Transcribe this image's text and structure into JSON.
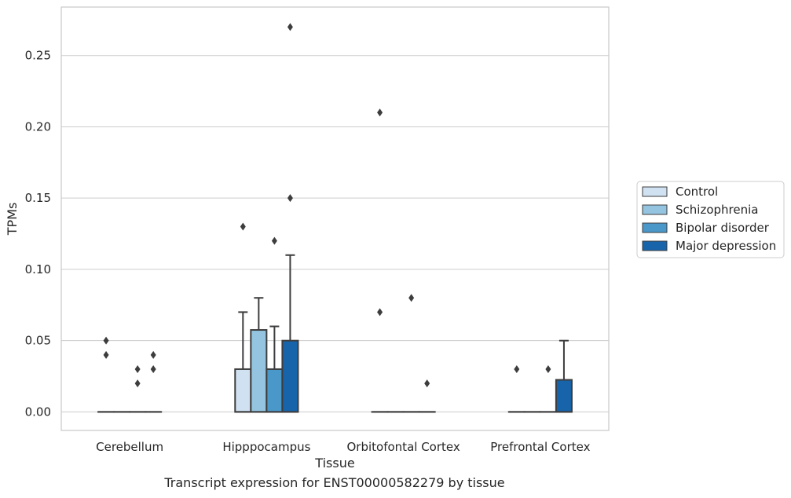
{
  "caption": "Transcript expression for ENST00000582279 by tissue",
  "chart_data": {
    "type": "box",
    "xlabel": "Tissue",
    "ylabel": "TPMs",
    "ylim": [
      -0.013,
      0.284
    ],
    "yticks": [
      "0.00",
      "0.05",
      "0.10",
      "0.15",
      "0.20",
      "0.25"
    ],
    "grid": "horizontal",
    "legend_position": "right",
    "categories": [
      "Cerebellum",
      "Hipppocampus",
      "Orbitofontal Cortex",
      "Prefrontal Cortex"
    ],
    "series": [
      {
        "name": "Control",
        "color": "#d0e1f2",
        "boxes": [
          {
            "q1": 0,
            "median": 0,
            "q3": 0,
            "whisker_low": 0,
            "whisker_high": 0,
            "outliers": [
              0.05,
              0.04
            ]
          },
          {
            "q1": 0,
            "median": 0,
            "q3": 0.03,
            "whisker_low": 0,
            "whisker_high": 0.07,
            "outliers": [
              0.13
            ]
          },
          {
            "q1": 0,
            "median": 0,
            "q3": 0,
            "whisker_low": 0,
            "whisker_high": 0,
            "outliers": [
              0.21,
              0.07
            ]
          },
          {
            "q1": 0,
            "median": 0,
            "q3": 0,
            "whisker_low": 0,
            "whisker_high": 0,
            "outliers": [
              0.03
            ]
          }
        ]
      },
      {
        "name": "Schizophrenia",
        "color": "#94c4df",
        "boxes": [
          {
            "q1": 0,
            "median": 0,
            "q3": 0,
            "whisker_low": 0,
            "whisker_high": 0,
            "outliers": []
          },
          {
            "q1": 0,
            "median": 0,
            "q3": 0.0575,
            "whisker_low": 0,
            "whisker_high": 0.08,
            "outliers": []
          },
          {
            "q1": 0,
            "median": 0,
            "q3": 0,
            "whisker_low": 0,
            "whisker_high": 0,
            "outliers": []
          },
          {
            "q1": 0,
            "median": 0,
            "q3": 0,
            "whisker_low": 0,
            "whisker_high": 0,
            "outliers": []
          }
        ]
      },
      {
        "name": "Bipolar disorder",
        "color": "#4a98c9",
        "boxes": [
          {
            "q1": 0,
            "median": 0,
            "q3": 0,
            "whisker_low": 0,
            "whisker_high": 0,
            "outliers": [
              0.03,
              0.02
            ]
          },
          {
            "q1": 0,
            "median": 0,
            "q3": 0.03,
            "whisker_low": 0,
            "whisker_high": 0.06,
            "outliers": [
              0.12
            ]
          },
          {
            "q1": 0,
            "median": 0,
            "q3": 0,
            "whisker_low": 0,
            "whisker_high": 0,
            "outliers": [
              0.08
            ]
          },
          {
            "q1": 0,
            "median": 0,
            "q3": 0,
            "whisker_low": 0,
            "whisker_high": 0,
            "outliers": [
              0.03
            ]
          }
        ]
      },
      {
        "name": "Major depression",
        "color": "#1764ab",
        "boxes": [
          {
            "q1": 0,
            "median": 0,
            "q3": 0,
            "whisker_low": 0,
            "whisker_high": 0,
            "outliers": [
              0.04,
              0.03
            ]
          },
          {
            "q1": 0,
            "median": 0,
            "q3": 0.05,
            "whisker_low": 0,
            "whisker_high": 0.11,
            "outliers": [
              0.27,
              0.15
            ]
          },
          {
            "q1": 0,
            "median": 0,
            "q3": 0,
            "whisker_low": 0,
            "whisker_high": 0,
            "outliers": [
              0.02
            ]
          },
          {
            "q1": 0,
            "median": 0,
            "q3": 0.0225,
            "whisker_low": 0,
            "whisker_high": 0.05,
            "outliers": []
          }
        ]
      }
    ]
  }
}
